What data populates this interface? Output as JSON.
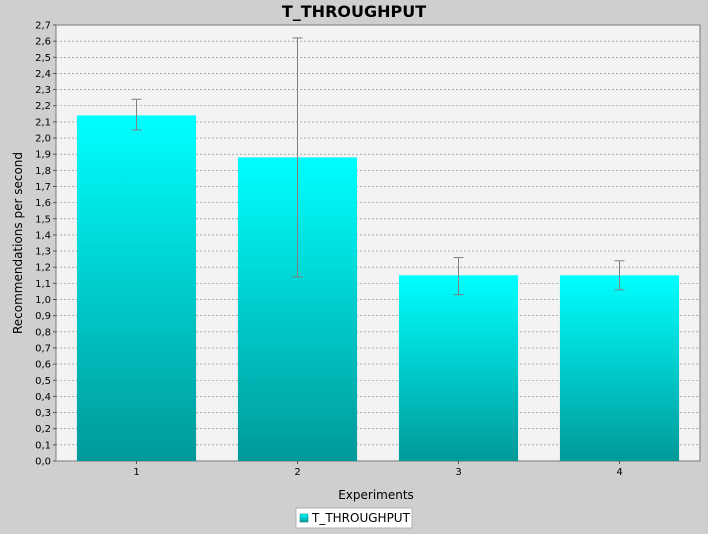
{
  "chart_data": {
    "type": "bar",
    "title": "T_THROUGHPUT",
    "xlabel": "Experiments",
    "ylabel": "Recommendations per second",
    "categories": [
      "1",
      "2",
      "3",
      "4"
    ],
    "series": [
      {
        "name": "T_THROUGHPUT",
        "values": [
          2.14,
          1.88,
          1.15,
          1.15
        ],
        "error_low": [
          2.05,
          1.14,
          1.03,
          1.06
        ],
        "error_high": [
          2.24,
          2.62,
          1.26,
          1.24
        ]
      }
    ],
    "ylim": [
      0,
      2.7
    ],
    "yticks": [
      "0,0",
      "0,1",
      "0,2",
      "0,3",
      "0,4",
      "0,5",
      "0,6",
      "0,7",
      "0,8",
      "0,9",
      "1,0",
      "1,1",
      "1,2",
      "1,3",
      "1,4",
      "1,5",
      "1,6",
      "1,7",
      "1,8",
      "1,9",
      "2,0",
      "2,1",
      "2,2",
      "2,3",
      "2,4",
      "2,5",
      "2,6",
      "2,7"
    ],
    "grid": true,
    "legend_position": "bottom",
    "colors": {
      "bar_top": "#00ffff",
      "bar_bottom": "#009999",
      "plot_background": "#f3f3f3",
      "page_background": "#cfcfcf",
      "gridline": "#808080",
      "error_bar": "#808080"
    }
  }
}
